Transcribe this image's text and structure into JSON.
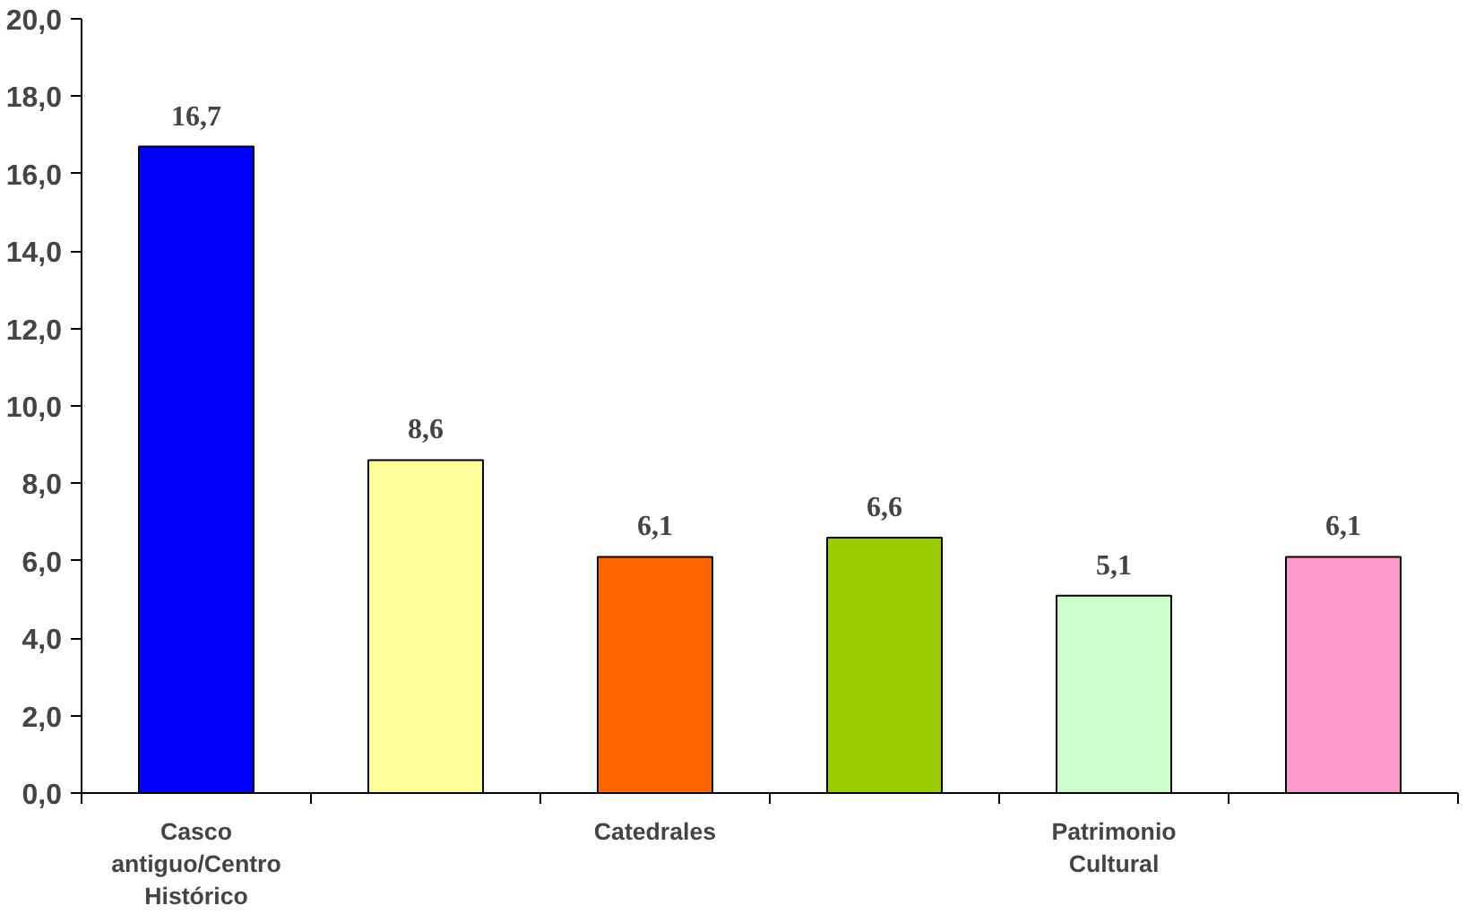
{
  "chart_data": {
    "type": "bar",
    "categories": [
      "Casco antiguo/Centro Histórico",
      null,
      "Catedrales",
      null,
      "Patrimonio Cultural",
      null
    ],
    "values": [
      16.7,
      8.6,
      6.1,
      6.6,
      5.1,
      6.1
    ],
    "value_labels": [
      "16,7",
      "8,6",
      "6,1",
      "6,6",
      "5,1",
      "6,1"
    ],
    "colors": [
      "#0000ff",
      "#ffff99",
      "#ff6600",
      "#99cc00",
      "#ccffcc",
      "#ff99cc"
    ],
    "ylim": [
      0,
      20
    ],
    "yticks": [
      {
        "value": 0,
        "label": "0,0"
      },
      {
        "value": 2,
        "label": "2,0"
      },
      {
        "value": 4,
        "label": "4,0"
      },
      {
        "value": 6,
        "label": "6,0"
      },
      {
        "value": 8,
        "label": "8,0"
      },
      {
        "value": 10,
        "label": "10,0"
      },
      {
        "value": 12,
        "label": "12,0"
      },
      {
        "value": 14,
        "label": "14,0"
      },
      {
        "value": 16,
        "label": "16,0"
      },
      {
        "value": 18,
        "label": "18,0"
      },
      {
        "value": 20,
        "label": "20,0"
      }
    ],
    "grid": false
  }
}
